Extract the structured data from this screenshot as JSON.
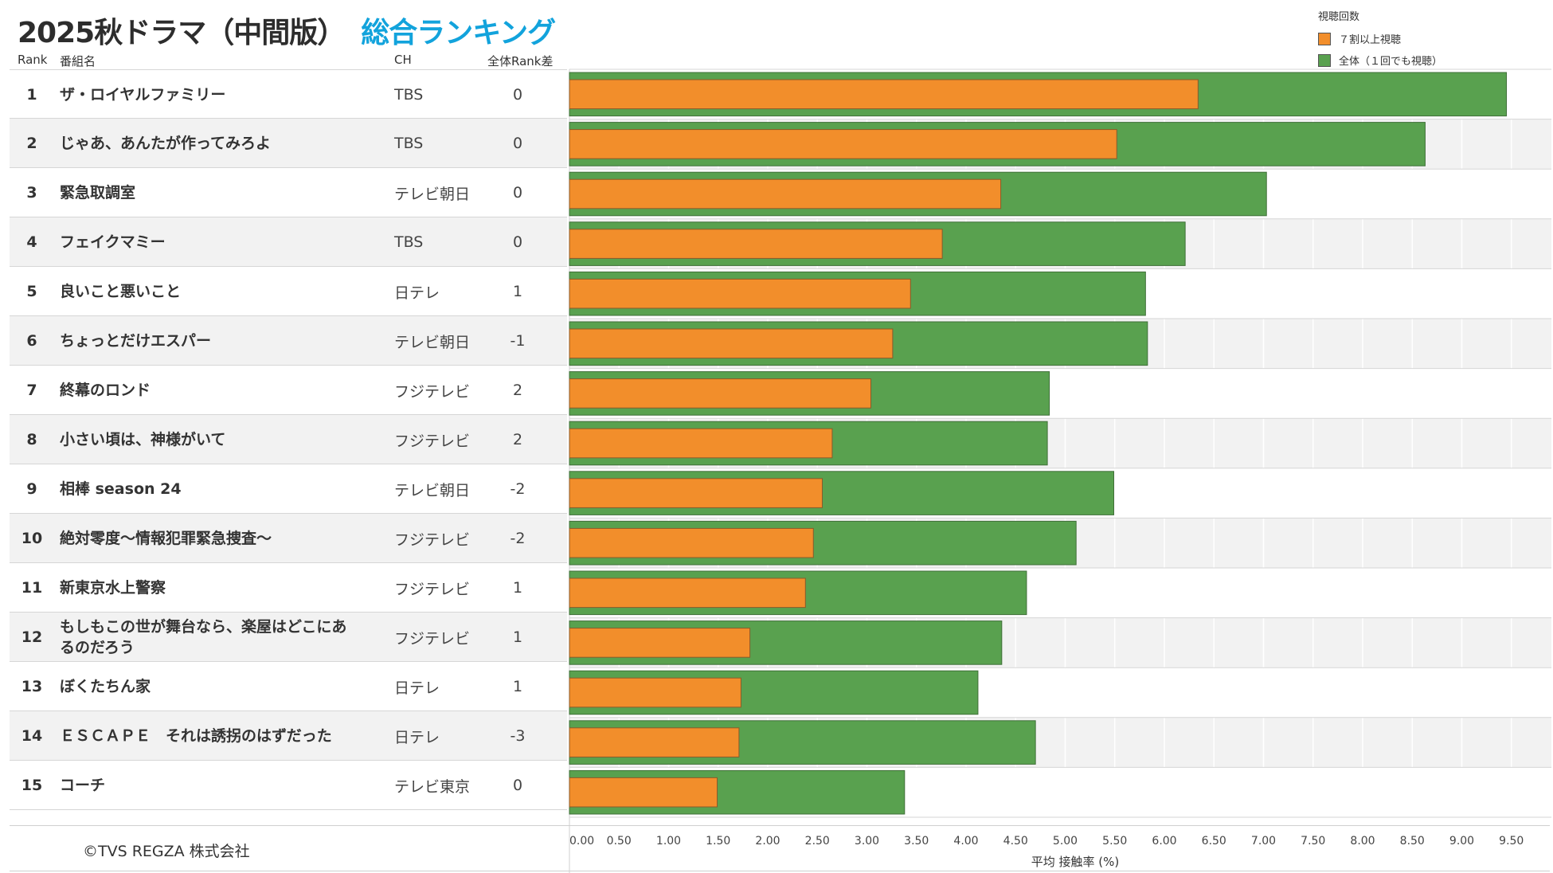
{
  "header": {
    "title_main": "2025秋ドラマ（中間版）",
    "title_sub": "総合ランキング"
  },
  "columns": {
    "rank": "Rank",
    "name": "番組名",
    "ch": "CH",
    "diff": "全体Rank差"
  },
  "legend": {
    "title": "視聴回数",
    "items": [
      {
        "label": "７割以上視聴",
        "color": "#f28e2b"
      },
      {
        "label": "全体（１回でも視聴）",
        "color": "#59a14f"
      }
    ]
  },
  "rows": [
    {
      "rank": "1",
      "name": "ザ・ロイヤルファミリー",
      "ch": "TBS",
      "diff": "0"
    },
    {
      "rank": "2",
      "name": "じゃあ、あんたが作ってみろよ",
      "ch": "TBS",
      "diff": "0"
    },
    {
      "rank": "3",
      "name": "緊急取調室",
      "ch": "テレビ朝日",
      "diff": "0"
    },
    {
      "rank": "4",
      "name": "フェイクマミー",
      "ch": "TBS",
      "diff": "0"
    },
    {
      "rank": "5",
      "name": "良いこと悪いこと",
      "ch": "日テレ",
      "diff": "1"
    },
    {
      "rank": "6",
      "name": "ちょっとだけエスパー",
      "ch": "テレビ朝日",
      "diff": "-1"
    },
    {
      "rank": "7",
      "name": "終幕のロンド",
      "ch": "フジテレビ",
      "diff": "2"
    },
    {
      "rank": "8",
      "name": "小さい頃は、神様がいて",
      "ch": "フジテレビ",
      "diff": "2"
    },
    {
      "rank": "9",
      "name": "相棒 season 24",
      "ch": "テレビ朝日",
      "diff": "-2"
    },
    {
      "rank": "10",
      "name": "絶対零度～情報犯罪緊急捜査～",
      "ch": "フジテレビ",
      "diff": "-2"
    },
    {
      "rank": "11",
      "name": "新東京水上警察",
      "ch": "フジテレビ",
      "diff": "1"
    },
    {
      "rank": "12",
      "name": "もしもこの世が舞台なら、楽屋はどこにあるのだろう",
      "ch": "フジテレビ",
      "diff": "1"
    },
    {
      "rank": "13",
      "name": "ぼくたちん家",
      "ch": "日テレ",
      "diff": "1"
    },
    {
      "rank": "14",
      "name": "ＥＳＣＡＰＥ　それは誘拐のはずだった",
      "ch": "日テレ",
      "diff": "-3"
    },
    {
      "rank": "15",
      "name": "コーチ",
      "ch": "テレビ東京",
      "diff": "0"
    }
  ],
  "footer": {
    "copyright": "©TVS REGZA 株式会社"
  },
  "chart_data": {
    "type": "bar",
    "orientation": "horizontal",
    "xlabel": "平均 接触率 (%)",
    "xlim": [
      0,
      9.9
    ],
    "xticks": [
      "0.00",
      "0.50",
      "1.00",
      "1.50",
      "2.00",
      "2.50",
      "3.00",
      "3.50",
      "4.00",
      "4.50",
      "5.00",
      "5.50",
      "6.00",
      "6.50",
      "7.00",
      "7.50",
      "8.00",
      "8.50",
      "9.00",
      "9.50"
    ],
    "grid": true,
    "legend_position": "top-right",
    "categories": [
      "ザ・ロイヤルファミリー",
      "じゃあ、あんたが作ってみろよ",
      "緊急取調室",
      "フェイクマミー",
      "良いこと悪いこと",
      "ちょっとだけエスパー",
      "終幕のロンド",
      "小さい頃は、神様がいて",
      "相棒 season 24",
      "絶対零度～情報犯罪緊急捜査～",
      "新東京水上警察",
      "もしもこの世が舞台なら、楽屋はどこにあるのだろう",
      "ぼくたちん家",
      "ＥＳＣＡＰＥ　それは誘拐のはずだった",
      "コーチ"
    ],
    "series": [
      {
        "name": "全体（１回でも視聴）",
        "color": "#59a14f",
        "values": [
          9.45,
          8.63,
          7.03,
          6.21,
          5.81,
          5.83,
          4.84,
          4.82,
          5.49,
          5.11,
          4.61,
          4.36,
          4.12,
          4.7,
          3.38
        ]
      },
      {
        "name": "７割以上視聴",
        "color": "#f28e2b",
        "values": [
          6.34,
          5.52,
          4.35,
          3.76,
          3.44,
          3.26,
          3.04,
          2.65,
          2.55,
          2.46,
          2.38,
          1.82,
          1.73,
          1.71,
          1.49
        ]
      }
    ]
  }
}
